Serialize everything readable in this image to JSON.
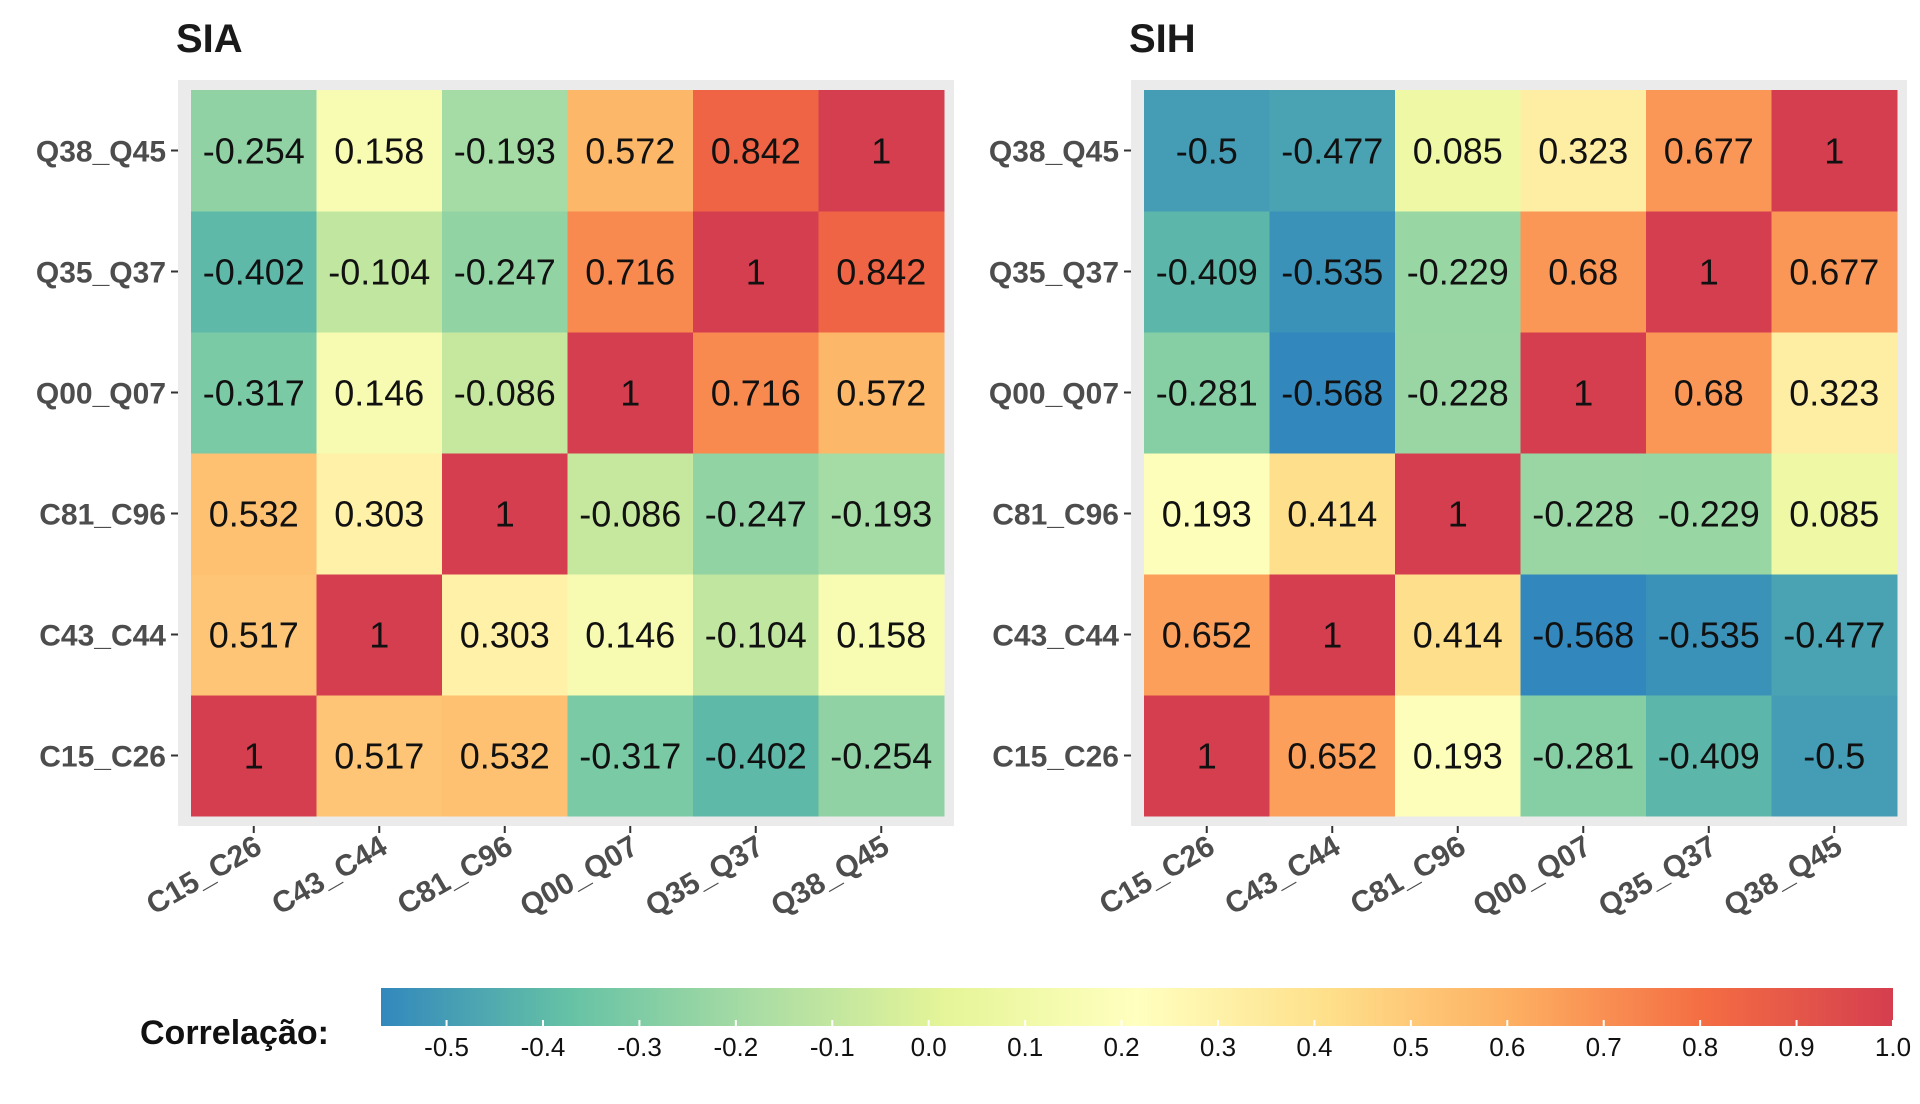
{
  "chart_data": [
    {
      "type": "heatmap",
      "title": "SIA",
      "categories_x": [
        "C15_C26",
        "C43_C44",
        "C81_C96",
        "Q00_Q07",
        "Q35_Q37",
        "Q38_Q45"
      ],
      "categories_y": [
        "C15_C26",
        "C43_C44",
        "C81_C96",
        "Q00_Q07",
        "Q35_Q37",
        "Q38_Q45"
      ],
      "matrix": [
        [
          1,
          0.517,
          0.532,
          -0.317,
          -0.402,
          -0.254
        ],
        [
          0.517,
          1,
          0.303,
          0.146,
          -0.104,
          0.158
        ],
        [
          0.532,
          0.303,
          1,
          -0.086,
          -0.247,
          -0.193
        ],
        [
          -0.317,
          0.146,
          -0.086,
          1,
          0.716,
          0.572
        ],
        [
          -0.402,
          -0.104,
          -0.247,
          0.716,
          1,
          0.842
        ],
        [
          -0.254,
          0.158,
          -0.193,
          0.572,
          0.842,
          1
        ]
      ],
      "labels": [
        [
          "1",
          "0.517",
          "0.532",
          "-0.317",
          "-0.402",
          "-0.254"
        ],
        [
          "0.517",
          "1",
          "0.303",
          "0.146",
          "-0.104",
          "0.158"
        ],
        [
          "0.532",
          "0.303",
          "1",
          "-0.086",
          "-0.247",
          "-0.193"
        ],
        [
          "-0.317",
          "0.146",
          "-0.086",
          "1",
          "0.716",
          "0.572"
        ],
        [
          "-0.402",
          "-0.104",
          "-0.247",
          "0.716",
          "1",
          "0.842"
        ],
        [
          "-0.254",
          "0.158",
          "-0.193",
          "0.572",
          "0.842",
          "1"
        ]
      ]
    },
    {
      "type": "heatmap",
      "title": "SIH",
      "categories_x": [
        "C15_C26",
        "C43_C44",
        "C81_C96",
        "Q00_Q07",
        "Q35_Q37",
        "Q38_Q45"
      ],
      "categories_y": [
        "C15_C26",
        "C43_C44",
        "C81_C96",
        "Q00_Q07",
        "Q35_Q37",
        "Q38_Q45"
      ],
      "matrix": [
        [
          1,
          0.652,
          0.193,
          -0.281,
          -0.409,
          -0.5
        ],
        [
          0.652,
          1,
          0.414,
          -0.568,
          -0.535,
          -0.477
        ],
        [
          0.193,
          0.414,
          1,
          -0.228,
          -0.229,
          0.085
        ],
        [
          -0.281,
          -0.568,
          -0.228,
          1,
          0.68,
          0.323
        ],
        [
          -0.409,
          -0.535,
          -0.229,
          0.68,
          1,
          0.677
        ],
        [
          -0.5,
          -0.477,
          0.085,
          0.323,
          0.677,
          1
        ]
      ],
      "labels": [
        [
          "1",
          "0.652",
          "0.193",
          "-0.281",
          "-0.409",
          "-0.5"
        ],
        [
          "0.652",
          "1",
          "0.414",
          "-0.568",
          "-0.535",
          "-0.477"
        ],
        [
          "0.193",
          "0.414",
          "1",
          "-0.228",
          "-0.229",
          "0.085"
        ],
        [
          "-0.281",
          "-0.568",
          "-0.228",
          "1",
          "0.68",
          "0.323"
        ],
        [
          "-0.409",
          "-0.535",
          "-0.229",
          "0.68",
          "1",
          "0.677"
        ],
        [
          "-0.5",
          "-0.477",
          "0.085",
          "0.323",
          "0.677",
          "1"
        ]
      ]
    }
  ],
  "legend": {
    "title": "Correlação:",
    "range": [
      -0.568,
      1.0
    ],
    "ticks": [
      -0.5,
      -0.4,
      -0.3,
      -0.2,
      -0.1,
      0.0,
      0.1,
      0.2,
      0.3,
      0.4,
      0.5,
      0.6,
      0.7,
      0.8,
      0.9,
      1.0
    ],
    "tick_labels": [
      "-0.5",
      "-0.4",
      "-0.3",
      "-0.2",
      "-0.1",
      "0.0",
      "0.1",
      "0.2",
      "0.3",
      "0.4",
      "0.5",
      "0.6",
      "0.7",
      "0.8",
      "0.9",
      "1.0"
    ],
    "placement": "bottom"
  },
  "colors": {
    "scale": [
      "#3288bd",
      "#66c2a5",
      "#abdda4",
      "#e6f598",
      "#ffffbf",
      "#fee08b",
      "#fdae61",
      "#f46d43",
      "#d53e4f"
    ],
    "panel_background": "#ebebeb",
    "tick_text": "#4d4d4d"
  }
}
